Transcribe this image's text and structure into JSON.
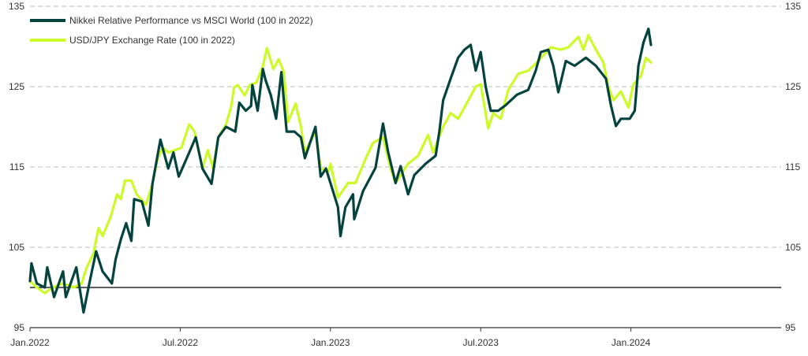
{
  "chart_data": {
    "type": "line",
    "title": "",
    "xlabel": "",
    "ylabel": "",
    "x_unit": "months since Jan.2022",
    "xlim": [
      0,
      30
    ],
    "ylim": [
      95,
      135
    ],
    "y_ticks": [
      95,
      105,
      115,
      125,
      135
    ],
    "x_ticks": [
      {
        "value": 0,
        "label": "Jan.2022"
      },
      {
        "value": 6,
        "label": "Jul.2022"
      },
      {
        "value": 12,
        "label": "Jan.2023"
      },
      {
        "value": 18,
        "label": "Jul.2023"
      },
      {
        "value": 24,
        "label": "Jan.2024"
      }
    ],
    "reference_line": 100,
    "grid": "horizontal dashed",
    "legend_position": "top-left",
    "series": [
      {
        "name": "Nikkei Relative Performance vs MSCI World (100 in 2022)",
        "color": "#05433f",
        "x": [
          0,
          0.06,
          0.27,
          0.59,
          0.69,
          0.96,
          1.32,
          1.43,
          1.85,
          2.14,
          2.37,
          2.64,
          2.9,
          3.27,
          3.42,
          3.63,
          3.84,
          4.05,
          4.16,
          4.47,
          4.73,
          4.89,
          5.21,
          5.52,
          5.73,
          5.94,
          6.36,
          6.62,
          6.89,
          7.25,
          7.52,
          7.83,
          8.2,
          8.36,
          8.62,
          8.83,
          8.88,
          9.09,
          9.3,
          9.41,
          9.62,
          9.83,
          10.04,
          10.14,
          10.25,
          10.56,
          10.82,
          10.98,
          11.4,
          11.61,
          11.82,
          12,
          12.3,
          12.4,
          12.6,
          12.9,
          12.95,
          13.3,
          13.8,
          14.1,
          14.3,
          14.6,
          14.8,
          15.1,
          15.35,
          15.8,
          16.2,
          16.35,
          16.5,
          16.8,
          17.1,
          17.35,
          17.6,
          17.8,
          18,
          18.2,
          18.4,
          18.7,
          19,
          19.45,
          19.9,
          20.2,
          20.4,
          20.7,
          20.9,
          21.1,
          21.4,
          21.75,
          22.2,
          22.6,
          23,
          23.2,
          23.4,
          23.6,
          23.95,
          24.15,
          24.3,
          24.5,
          24.7,
          24.8
        ],
        "y": [
          100.8,
          103,
          100.5,
          100,
          102.5,
          98.8,
          102,
          98.8,
          102.5,
          96.9,
          100.5,
          104.5,
          102,
          100.5,
          103.5,
          106,
          108,
          105.8,
          111,
          110.7,
          107.7,
          112.9,
          118.4,
          114.8,
          116.8,
          113.8,
          116.8,
          118.7,
          114.8,
          112.9,
          118.7,
          120,
          119.4,
          123,
          122,
          122.6,
          125.2,
          122,
          127.2,
          125.8,
          123.9,
          121,
          126.8,
          123.2,
          119.4,
          119.4,
          118.7,
          116.1,
          120,
          113.8,
          114.8,
          113,
          110,
          106.4,
          110,
          111.6,
          108.5,
          112,
          114.9,
          120.4,
          116.9,
          113,
          115.1,
          111.6,
          114,
          115.4,
          116.4,
          119.4,
          123.3,
          126,
          128.6,
          129.6,
          130.2,
          127,
          129.3,
          125,
          122,
          122,
          122.7,
          124,
          124.6,
          127,
          129.3,
          129.6,
          127.6,
          124.3,
          128.2,
          127.6,
          128.6,
          127.6,
          126,
          122.7,
          120.1,
          121,
          121,
          122,
          127.6,
          130.5,
          132.2,
          130.2
        ]
      },
      {
        "name": "USD/JPY Exchange Rate (100 in 2022)",
        "color": "#cdfb2a",
        "x": [
          0,
          0.27,
          0.59,
          0.9,
          1.32,
          1.74,
          2.06,
          2.27,
          2.53,
          2.74,
          2.9,
          3.21,
          3.48,
          3.63,
          3.79,
          4.05,
          4.26,
          4.63,
          4.89,
          5.1,
          5.31,
          5.52,
          5.79,
          6.05,
          6.36,
          6.57,
          6.89,
          7.1,
          7.31,
          7.52,
          7.83,
          8.04,
          8.15,
          8.3,
          8.57,
          8.78,
          9.04,
          9.3,
          9.46,
          9.72,
          9.93,
          10.14,
          10.3,
          10.61,
          10.82,
          10.98,
          11.4,
          11.61,
          11.93,
          12,
          12.3,
          12.7,
          13,
          13.4,
          13.7,
          14.1,
          14.4,
          14.6,
          15.1,
          15.5,
          15.9,
          16.1,
          16.5,
          16.8,
          17.1,
          17.4,
          17.8,
          18,
          18.3,
          18.5,
          18.8,
          19.1,
          19.5,
          19.9,
          20.3,
          20.8,
          21.2,
          21.5,
          21.9,
          22.1,
          22.3,
          22.6,
          22.9,
          23.1,
          23.3,
          23.6,
          23.9,
          24.1,
          24.4,
          24.6,
          24.8
        ],
        "y": [
          100.8,
          100,
          99.3,
          100,
          100.5,
          100,
          100.5,
          102.5,
          104.2,
          107.4,
          106.4,
          108.7,
          111.6,
          111,
          113.3,
          113.3,
          111.6,
          110.3,
          112.9,
          116.1,
          117.4,
          116.8,
          117.1,
          117.4,
          120.3,
          119.4,
          114.8,
          117.1,
          114.8,
          118.7,
          120.3,
          122.6,
          124.9,
          125.2,
          123.9,
          125.2,
          125.5,
          127.5,
          129.8,
          127.2,
          128.4,
          126.8,
          120.6,
          122.9,
          120,
          116.8,
          119.4,
          114.8,
          114.5,
          115.4,
          111.2,
          113,
          113,
          116,
          118,
          118.7,
          114.8,
          113,
          115.4,
          116.4,
          119,
          116.8,
          120,
          121.7,
          121,
          122.7,
          125,
          125.3,
          119.8,
          121.7,
          121,
          124.6,
          126.6,
          127,
          128.2,
          129.9,
          129.6,
          129.9,
          131.2,
          129.6,
          131.4,
          129.6,
          128,
          125,
          123.3,
          124.4,
          122.4,
          125.3,
          126.3,
          128.6,
          128
        ]
      }
    ]
  }
}
